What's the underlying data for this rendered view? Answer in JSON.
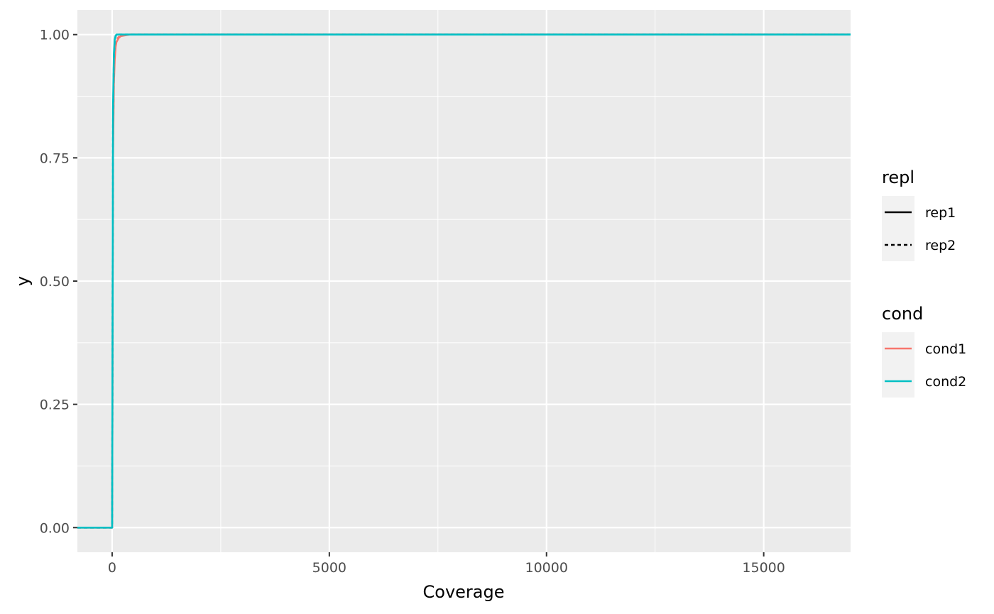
{
  "chart_data": {
    "type": "line",
    "title": "",
    "xlabel": "Coverage",
    "ylabel": "y",
    "xlim": [
      -800,
      17000
    ],
    "ylim": [
      -0.05,
      1.05
    ],
    "x_ticks": [
      0,
      5000,
      10000,
      15000
    ],
    "x_tick_labels": [
      "0",
      "5000",
      "10000",
      "15000"
    ],
    "y_ticks": [
      0,
      0.25,
      0.5,
      0.75,
      1.0
    ],
    "y_tick_labels": [
      "0.00",
      "0.25",
      "0.50",
      "0.75",
      "1.00"
    ],
    "grid": true,
    "legend_position": "right",
    "legends": [
      {
        "title": "repl",
        "kind": "linetype",
        "items": [
          {
            "label": "rep1",
            "dash": "solid"
          },
          {
            "label": "rep2",
            "dash": "dashed"
          }
        ]
      },
      {
        "title": "cond",
        "kind": "color",
        "items": [
          {
            "label": "cond1",
            "color": "#F8766D"
          },
          {
            "label": "cond2",
            "color": "#00BFC4"
          }
        ]
      }
    ],
    "series": [
      {
        "cond": "cond1",
        "repl": "rep1",
        "color": "#F8766D",
        "dash": "solid",
        "x": [
          -800,
          0,
          20,
          40,
          60,
          80,
          100,
          150,
          200,
          400,
          17000
        ],
        "y": [
          0,
          0,
          0.75,
          0.9,
          0.95,
          0.975,
          0.985,
          0.993,
          0.997,
          1.0,
          1.0
        ]
      },
      {
        "cond": "cond1",
        "repl": "rep2",
        "color": "#F8766D",
        "dash": "dashed",
        "x": [
          -800,
          0,
          20,
          40,
          60,
          80,
          100,
          150,
          200,
          400,
          17000
        ],
        "y": [
          0,
          0,
          0.78,
          0.92,
          0.96,
          0.98,
          0.99,
          0.995,
          0.998,
          1.0,
          1.0
        ]
      },
      {
        "cond": "cond2",
        "repl": "rep1",
        "color": "#00BFC4",
        "dash": "solid",
        "x": [
          -800,
          0,
          20,
          40,
          60,
          80,
          100,
          200,
          400,
          17000
        ],
        "y": [
          0,
          0,
          0.85,
          0.96,
          0.99,
          0.998,
          1.0,
          1.0,
          1.0,
          1.0
        ]
      },
      {
        "cond": "cond2",
        "repl": "rep2",
        "color": "#00BFC4",
        "dash": "dashed",
        "x": [
          -800,
          0,
          20,
          40,
          60,
          80,
          100,
          200,
          400,
          17000
        ],
        "y": [
          0,
          0,
          0.82,
          0.95,
          0.985,
          0.996,
          1.0,
          1.0,
          1.0,
          1.0
        ]
      }
    ]
  }
}
